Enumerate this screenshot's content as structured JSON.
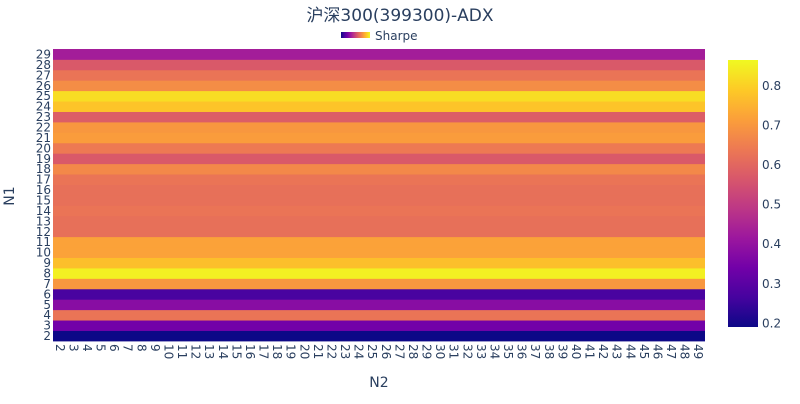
{
  "chart_data": {
    "type": "heatmap",
    "title": "沪深300(399300)-ADX",
    "xlabel": "N2",
    "ylabel": "N1",
    "legend": {
      "label": "Sharpe",
      "placement": "top-center"
    },
    "x": [
      2,
      3,
      4,
      5,
      6,
      7,
      8,
      9,
      10,
      11,
      12,
      13,
      14,
      15,
      16,
      17,
      18,
      19,
      20,
      21,
      22,
      23,
      24,
      25,
      26,
      27,
      28,
      29,
      30,
      31,
      32,
      33,
      34,
      35,
      36,
      37,
      38,
      39,
      40,
      41,
      42,
      43,
      44,
      45,
      46,
      47,
      48,
      49
    ],
    "y": [
      2,
      3,
      4,
      5,
      6,
      7,
      8,
      9,
      10,
      11,
      12,
      13,
      14,
      15,
      16,
      17,
      18,
      19,
      20,
      21,
      22,
      23,
      24,
      25,
      26,
      27,
      28,
      29
    ],
    "row_values": [
      0.19,
      0.34,
      0.63,
      0.38,
      0.27,
      0.7,
      0.85,
      0.77,
      0.72,
      0.72,
      0.62,
      0.62,
      0.63,
      0.62,
      0.62,
      0.63,
      0.67,
      0.57,
      0.64,
      0.71,
      0.7,
      0.58,
      0.78,
      0.82,
      0.68,
      0.63,
      0.57,
      0.43
    ],
    "colorscale": {
      "name": "Plasma",
      "stops": [
        "#0d0887",
        "#46039f",
        "#7201a8",
        "#9c179e",
        "#bd3786",
        "#d8576b",
        "#ed7953",
        "#fb9f3a",
        "#fdca26",
        "#f0f921"
      ],
      "range": [
        0.19,
        0.865
      ],
      "ticks": [
        0.2,
        0.3,
        0.4,
        0.5,
        0.6,
        0.7,
        0.8
      ]
    },
    "grid": false
  }
}
